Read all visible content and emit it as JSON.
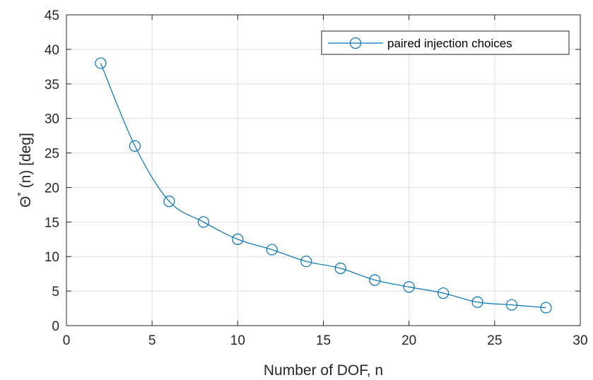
{
  "chart_data": {
    "type": "line",
    "title": "",
    "xlabel": "Number of DOF, n",
    "ylabel": {
      "symbol": "Θ",
      "superscript": "*",
      "rest": " (n) [deg]"
    },
    "xlim": [
      0,
      30
    ],
    "ylim": [
      0,
      45
    ],
    "xticks": [
      0,
      5,
      10,
      15,
      20,
      25,
      30
    ],
    "yticks": [
      0,
      5,
      10,
      15,
      20,
      25,
      30,
      35,
      40,
      45
    ],
    "grid": true,
    "legend_position": "top-right",
    "series": [
      {
        "name": "paired injection choices",
        "color": "#0072BD",
        "marker": "circle",
        "x": [
          2,
          4,
          6,
          8,
          10,
          12,
          14,
          16,
          18,
          20,
          22,
          24,
          26,
          28
        ],
        "y": [
          38,
          26,
          18,
          15,
          12.5,
          11,
          9.3,
          8.3,
          6.6,
          5.6,
          4.7,
          3.4,
          3.0,
          2.6
        ]
      }
    ]
  }
}
